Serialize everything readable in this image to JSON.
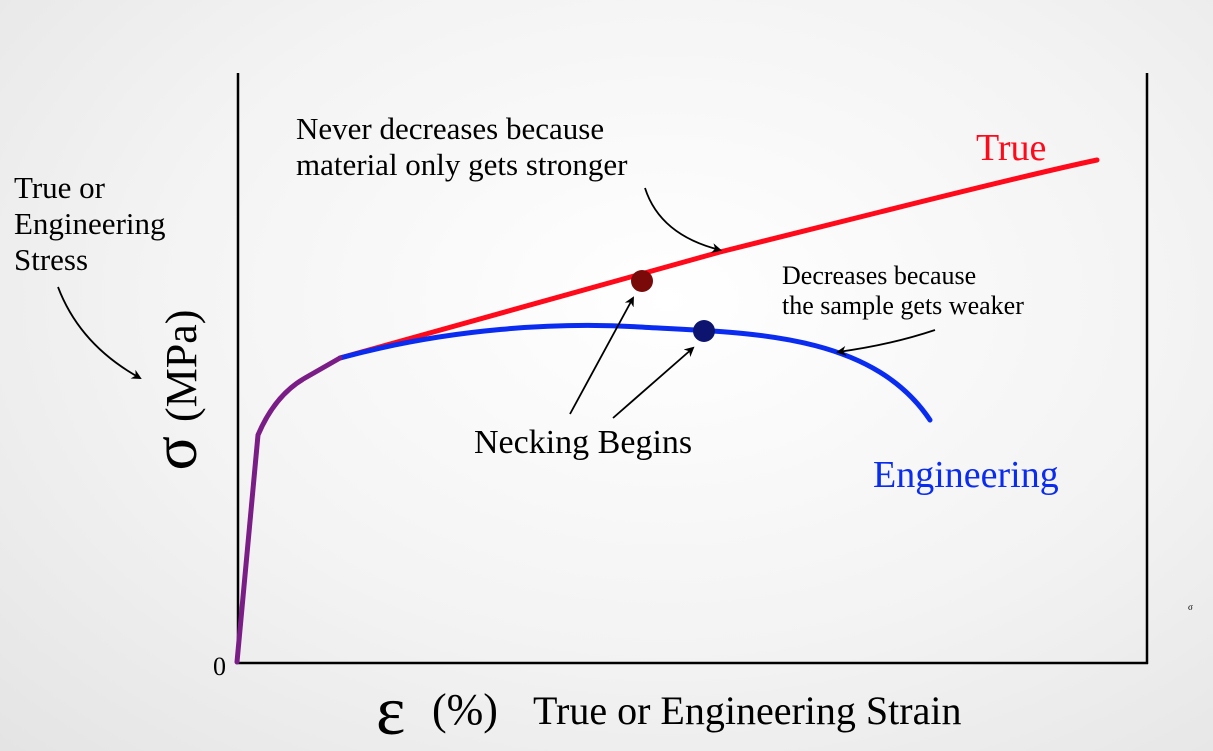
{
  "annotations": {
    "y_axis_note_line1": "True or",
    "y_axis_note_line2": "Engineering",
    "y_axis_note_line3": "Stress",
    "true_note_line1": "Never decreases because",
    "true_note_line2": "material only gets stronger",
    "eng_note_line1": "Decreases because",
    "eng_note_line2": "the sample gets weaker",
    "necking": "Necking Begins",
    "corner_mark": "σ"
  },
  "axes": {
    "origin_label": "0",
    "y_symbol": "σ",
    "y_unit": "(MPa)",
    "x_symbol": "ε",
    "x_unit": "(%)",
    "x_label": "True or Engineering Strain"
  },
  "curves": {
    "true_label": "True",
    "engineering_label": "Engineering"
  },
  "colors": {
    "true_curve": "#ff0a1a",
    "engineering_curve": "#0a2cf0",
    "elastic_region": "#7b1d86",
    "true_necking_point": "#7a0a0a",
    "engineering_necking_point": "#0c1470",
    "axis": "#000000",
    "text": "#000000"
  }
}
